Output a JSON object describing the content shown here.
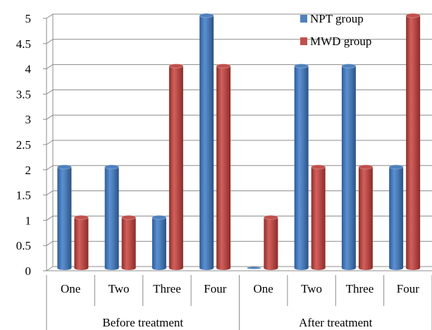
{
  "chart_data": {
    "type": "bar",
    "title": "",
    "xlabel": "",
    "ylabel": "",
    "ylim": [
      0,
      5
    ],
    "yticks": [
      "0",
      "0.5",
      "1",
      "1.5",
      "2",
      "2.5",
      "3",
      "3.5",
      "4",
      "4.5",
      "5"
    ],
    "grid": true,
    "legend_position": "top-right",
    "categories": [
      "One",
      "Two",
      "Three",
      "Four",
      "One",
      "Two",
      "Three",
      "Four"
    ],
    "groups": [
      {
        "label": "Before treatment",
        "start": 0,
        "count": 4
      },
      {
        "label": "After treatment",
        "start": 4,
        "count": 4
      }
    ],
    "series": [
      {
        "name": "NPT group",
        "color": "#4F81BD",
        "values": [
          2,
          2,
          1,
          5,
          0,
          4,
          4,
          2
        ]
      },
      {
        "name": "MWD group",
        "color": "#C0504D",
        "values": [
          1,
          1,
          4,
          4,
          1,
          2,
          2,
          5
        ]
      }
    ]
  }
}
